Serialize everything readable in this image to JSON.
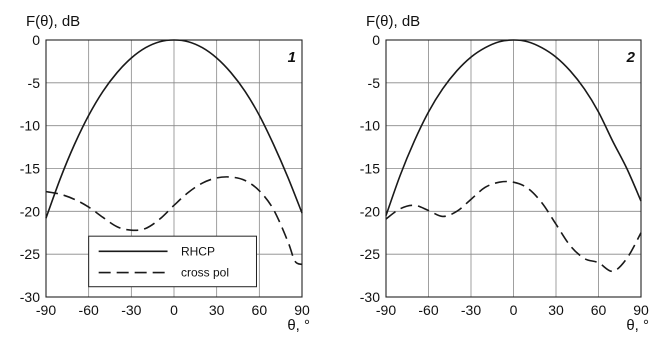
{
  "chart_data": [
    {
      "type": "line",
      "panel_label": "1",
      "ylabel": "F(θ), dB",
      "xlabel": "θ, °",
      "xlim": [
        -90,
        90
      ],
      "ylim": [
        -30,
        0
      ],
      "xticks": [
        -90,
        -60,
        -30,
        0,
        30,
        60,
        90
      ],
      "yticks": [
        0,
        -5,
        -10,
        -15,
        -20,
        -25,
        -30
      ],
      "grid": true,
      "legend": {
        "placement": "bottom-center",
        "entries": [
          "RHCP",
          "cross pol"
        ]
      },
      "series": [
        {
          "name": "RHCP",
          "style": "solid",
          "x": [
            -90,
            -80,
            -70,
            -60,
            -50,
            -40,
            -30,
            -20,
            -10,
            0,
            10,
            20,
            30,
            40,
            50,
            60,
            70,
            80,
            90
          ],
          "y": [
            -20.8,
            -16.2,
            -12.2,
            -8.8,
            -6.0,
            -3.8,
            -2.1,
            -0.9,
            -0.2,
            0,
            -0.2,
            -0.9,
            -2.1,
            -3.8,
            -6.0,
            -8.8,
            -12.2,
            -16.0,
            -20.2
          ]
        },
        {
          "name": "cross pol",
          "style": "dashed",
          "x": [
            -90,
            -80,
            -70,
            -60,
            -50,
            -40,
            -30,
            -20,
            -10,
            0,
            10,
            20,
            30,
            40,
            50,
            60,
            70,
            80,
            85,
            90
          ],
          "y": [
            -17.7,
            -18.0,
            -18.6,
            -19.5,
            -20.7,
            -21.8,
            -22.2,
            -22.0,
            -20.9,
            -19.3,
            -17.8,
            -16.7,
            -16.1,
            -16.0,
            -16.4,
            -17.6,
            -19.8,
            -23.5,
            -25.8,
            -26.2
          ]
        }
      ]
    },
    {
      "type": "line",
      "panel_label": "2",
      "ylabel": "F(θ), dB",
      "xlabel": "θ, °",
      "xlim": [
        -90,
        90
      ],
      "ylim": [
        -30,
        0
      ],
      "xticks": [
        -90,
        -60,
        -30,
        0,
        30,
        60,
        90
      ],
      "yticks": [
        0,
        -5,
        -10,
        -15,
        -20,
        -25,
        -30
      ],
      "grid": true,
      "series": [
        {
          "name": "RHCP",
          "style": "solid",
          "x": [
            -90,
            -80,
            -70,
            -60,
            -50,
            -40,
            -30,
            -20,
            -10,
            0,
            10,
            20,
            30,
            40,
            50,
            60,
            70,
            80,
            90
          ],
          "y": [
            -20.5,
            -15.8,
            -11.8,
            -8.4,
            -5.7,
            -3.6,
            -2.0,
            -0.9,
            -0.2,
            0,
            -0.2,
            -0.9,
            -2.0,
            -3.6,
            -5.7,
            -8.4,
            -11.8,
            -15.0,
            -18.8
          ]
        },
        {
          "name": "cross pol",
          "style": "dashed",
          "x": [
            -90,
            -80,
            -70,
            -60,
            -50,
            -40,
            -30,
            -20,
            -10,
            0,
            10,
            20,
            30,
            40,
            50,
            60,
            70,
            80,
            90
          ],
          "y": [
            -20.9,
            -19.7,
            -19.3,
            -19.9,
            -20.6,
            -20.0,
            -18.6,
            -17.2,
            -16.6,
            -16.6,
            -17.3,
            -19.0,
            -21.5,
            -24.0,
            -25.5,
            -26.0,
            -27.0,
            -25.5,
            -22.5
          ]
        }
      ]
    }
  ]
}
